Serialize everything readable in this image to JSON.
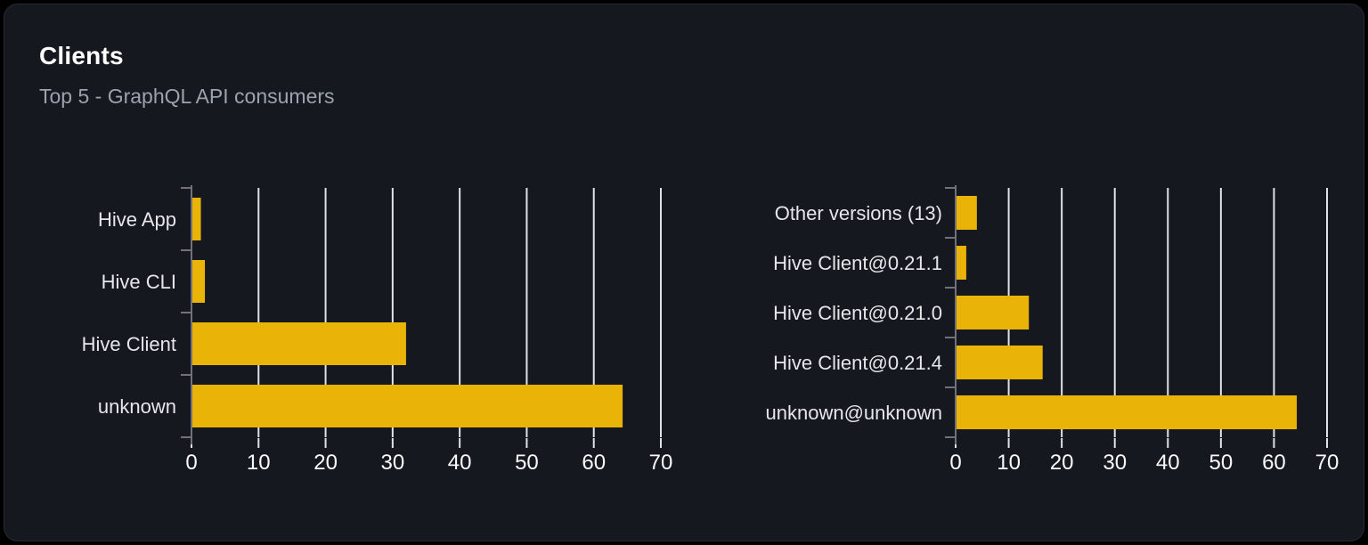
{
  "card": {
    "title": "Clients",
    "subtitle": "Top 5 - GraphQL API consumers"
  },
  "colors": {
    "page_background": "#000000",
    "card_background": "#15181e",
    "card_border": "#272c34",
    "title": "#ffffff",
    "subtitle": "#9ca3af",
    "bar": "#eab308",
    "grid_line": "#dfe2e7",
    "axis_line": "#71717a",
    "category_label": "#e5e7eb",
    "tick_label": "#f9fafb"
  },
  "chart_data": [
    {
      "type": "bar",
      "name": "clients-by-name",
      "orientation": "horizontal",
      "categories": [
        "Hive App",
        "Hive CLI",
        "Hive Client",
        "unknown"
      ],
      "values": [
        1.4,
        2,
        32,
        64.3
      ],
      "xlim": [
        0,
        70
      ],
      "xticks": [
        0,
        10,
        20,
        30,
        40,
        50,
        60,
        70
      ],
      "grid": true,
      "legend_position": "none",
      "title": "",
      "xlabel": "",
      "ylabel": ""
    },
    {
      "type": "bar",
      "name": "clients-by-version",
      "orientation": "horizontal",
      "categories": [
        "Other versions (13)",
        "Hive Client@0.21.1",
        "Hive Client@0.21.0",
        "Hive Client@0.21.4",
        "unknown@unknown"
      ],
      "values": [
        4,
        2,
        13.8,
        16.4,
        64.3
      ],
      "xlim": [
        0,
        70
      ],
      "xticks": [
        0,
        10,
        20,
        30,
        40,
        50,
        60,
        70
      ],
      "grid": true,
      "legend_position": "none",
      "title": "",
      "xlabel": "",
      "ylabel": ""
    }
  ]
}
